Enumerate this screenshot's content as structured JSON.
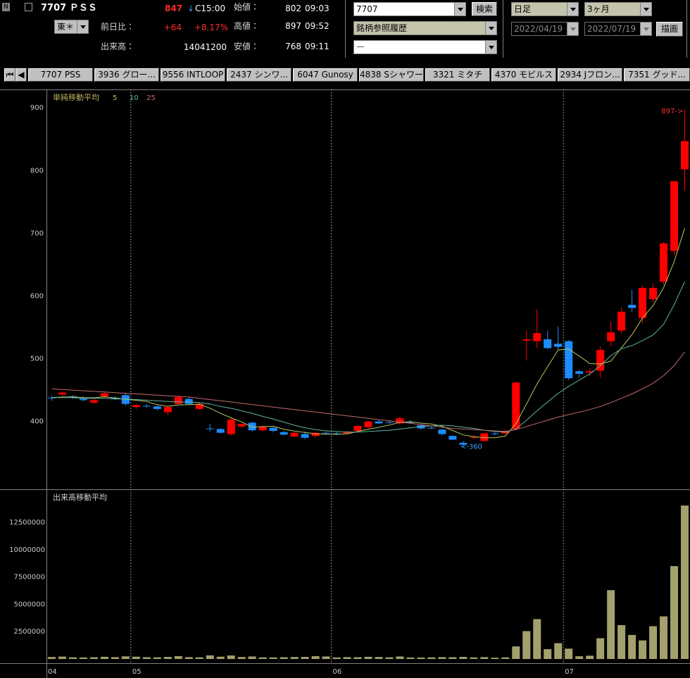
{
  "header": {
    "badge": "N",
    "name": "7707 ＰＳＳ",
    "price": "847",
    "direction": "↓",
    "time": "C15:00",
    "open_label": "始値：",
    "open": "802",
    "open_time": "09:03",
    "exchange": "東＊",
    "change_label": "前日比：",
    "change": "+64",
    "change_pct": "+8.17%",
    "high_label": "高値：",
    "high": "897",
    "high_time": "09:52",
    "volume_label": "出来高：",
    "volume": "14041200",
    "low_label": "安値：",
    "low": "768",
    "low_time": "09:11"
  },
  "controls": {
    "code": "7707",
    "search": "検索",
    "history": "銘柄参照履歴",
    "blank": "ー",
    "period": "日足",
    "range": "3ヶ月",
    "from": "2022/04/19",
    "to": "2022/07/19",
    "draw": "描画"
  },
  "tabs": [
    "7707 PSS",
    "3936 グロー...",
    "9556 INTLOOP",
    "2437 シンワ...",
    "6047 Gunosy",
    "4838 Sシャワー",
    "3321 ミタチ",
    "4370 モビルス",
    "2934 Jフロン...",
    "7351 グッド..."
  ],
  "chart_data": [
    {
      "type": "candlestick",
      "title": "単純移動平均",
      "ylim": [
        293,
        926
      ],
      "yticks": [
        400,
        500,
        600,
        700,
        800,
        900
      ],
      "up_color": "#ff0000",
      "down_color": "#1e8cff",
      "open": [
        438,
        443,
        440,
        436,
        430,
        440,
        438,
        442,
        423,
        425,
        424,
        415,
        428,
        436,
        420,
        389,
        388,
        380,
        392,
        398,
        386,
        390,
        383,
        376,
        380,
        377,
        382,
        381,
        381,
        385,
        391,
        400,
        399,
        397,
        399,
        394,
        390,
        387,
        377,
        366,
        374,
        369,
        381,
        381,
        388,
        529,
        528,
        531,
        524,
        528,
        480,
        478,
        481,
        528,
        545,
        586,
        565,
        595,
        623,
        672,
        802
      ],
      "high": [
        441,
        448,
        442,
        440,
        436,
        447,
        440,
        446,
        427,
        428,
        426,
        425,
        441,
        438,
        430,
        396,
        389,
        405,
        397,
        400,
        394,
        391,
        385,
        383,
        384,
        383,
        384,
        383,
        385,
        394,
        401,
        402,
        401,
        408,
        402,
        395,
        393,
        388,
        378,
        369,
        378,
        382,
        383,
        387,
        463,
        545,
        579,
        545,
        551,
        530,
        482,
        485,
        520,
        560,
        582,
        610,
        617,
        620,
        686,
        784,
        897
      ],
      "low": [
        433,
        441,
        436,
        432,
        428,
        438,
        434,
        425,
        420,
        422,
        418,
        410,
        427,
        426,
        418,
        384,
        381,
        378,
        390,
        384,
        384,
        383,
        378,
        375,
        372,
        375,
        379,
        378,
        380,
        384,
        389,
        396,
        396,
        395,
        396,
        387,
        388,
        378,
        370,
        360,
        372,
        368,
        378,
        380,
        386,
        497,
        517,
        515,
        515,
        466,
        470,
        472,
        470,
        520,
        540,
        575,
        556,
        590,
        618,
        665,
        768
      ],
      "close": [
        437,
        446,
        438,
        434,
        434,
        445,
        436,
        428,
        426,
        424,
        420,
        423,
        439,
        428,
        428,
        388,
        382,
        403,
        396,
        386,
        392,
        385,
        379,
        382,
        374,
        382,
        381,
        380,
        384,
        393,
        400,
        397,
        398,
        405,
        398,
        389,
        390,
        380,
        371,
        363,
        375,
        381,
        380,
        385,
        462,
        531,
        541,
        517,
        519,
        469,
        476,
        480,
        514,
        542,
        575,
        581,
        613,
        613,
        684,
        783,
        847
      ],
      "series": [
        {
          "name": "5",
          "color": "#b4c85a",
          "values": [
            438,
            439,
            439,
            438,
            437.8,
            439.4,
            437.4,
            435.4,
            433.8,
            431.8,
            426.8,
            424.2,
            426.4,
            426.8,
            427.6,
            421.2,
            413,
            405.8,
            399.4,
            391,
            391.8,
            392.4,
            387.6,
            384.8,
            382.4,
            380.4,
            379.6,
            379.8,
            380.2,
            384,
            387.6,
            390.8,
            394.4,
            398.6,
            399.6,
            397.4,
            396,
            392.4,
            385.6,
            378.6,
            375.8,
            374,
            374,
            376.8,
            396.6,
            427.8,
            459.8,
            487.2,
            514,
            515.4,
            504.4,
            492.2,
            491.6,
            496.2,
            517.4,
            538.4,
            565,
            584.8,
            613.2,
            654.8,
            708
          ]
        },
        {
          "name": "10",
          "color": "#5fb4a0",
          "values": [
            438,
            438,
            438,
            437,
            437,
            437,
            436,
            436,
            435,
            434,
            433,
            432,
            431,
            431,
            430,
            428,
            424,
            421,
            417,
            413,
            408,
            404,
            399,
            394,
            390,
            387,
            385,
            384,
            383,
            383,
            384,
            385,
            386,
            388,
            390,
            392,
            393,
            394,
            393,
            391,
            389,
            386,
            384,
            383,
            388,
            402,
            417,
            431,
            445,
            456,
            466,
            476,
            489,
            505,
            516,
            521,
            529,
            538,
            555,
            586,
            623
          ]
        },
        {
          "name": "25",
          "color": "#c06a6a",
          "values": [
            452,
            451,
            450,
            449,
            448,
            447,
            446,
            445,
            444,
            443,
            442,
            441,
            440,
            439,
            437,
            435,
            433,
            431,
            429,
            427,
            425,
            423,
            421,
            419,
            417,
            415,
            413,
            411,
            409,
            407,
            405,
            403,
            401,
            399,
            397,
            395,
            393,
            391,
            389,
            388,
            387,
            386,
            385,
            384,
            387,
            392,
            397,
            402,
            407,
            411,
            415,
            419,
            424,
            430,
            437,
            444,
            452,
            461,
            473,
            489,
            511
          ]
        }
      ],
      "annotations": [
        {
          "text": "897->",
          "index": 60,
          "value": 897,
          "color": "#ff3030"
        },
        {
          "text": "<-360",
          "index": 39,
          "value": 360,
          "color": "#3c9cff"
        }
      ]
    },
    {
      "type": "bar",
      "title": "出来高移動平均",
      "categories": [
        "04",
        null,
        null,
        null,
        null,
        null,
        null,
        null,
        "05",
        null,
        null,
        null,
        null,
        null,
        null,
        null,
        null,
        null,
        null,
        null,
        null,
        null,
        null,
        null,
        null,
        null,
        null,
        "06",
        null,
        null,
        null,
        null,
        null,
        null,
        null,
        null,
        null,
        null,
        null,
        null,
        null,
        null,
        null,
        null,
        null,
        null,
        null,
        null,
        null,
        "07",
        null,
        null,
        null,
        null,
        null,
        null,
        null,
        null,
        null,
        null,
        null
      ],
      "values": [
        180000,
        220000,
        150000,
        140000,
        160000,
        200000,
        170000,
        240000,
        210000,
        160000,
        150000,
        190000,
        260000,
        170000,
        150000,
        330000,
        210000,
        320000,
        180000,
        230000,
        150000,
        140000,
        160000,
        180000,
        190000,
        260000,
        230000,
        140000,
        170000,
        160000,
        200000,
        180000,
        150000,
        230000,
        140000,
        130000,
        150000,
        170000,
        160000,
        190000,
        140000,
        170000,
        120000,
        150000,
        1150000,
        2550000,
        3650000,
        900000,
        1450000,
        950000,
        250000,
        300000,
        1900000,
        6300000,
        3100000,
        2200000,
        1700000,
        3000000,
        3900000,
        8500000,
        14041200
      ],
      "color": "#a3a06c",
      "ylim": [
        0,
        15400000
      ],
      "yticks": [
        2500000,
        5000000,
        7500000,
        10000000,
        12500000
      ]
    }
  ]
}
